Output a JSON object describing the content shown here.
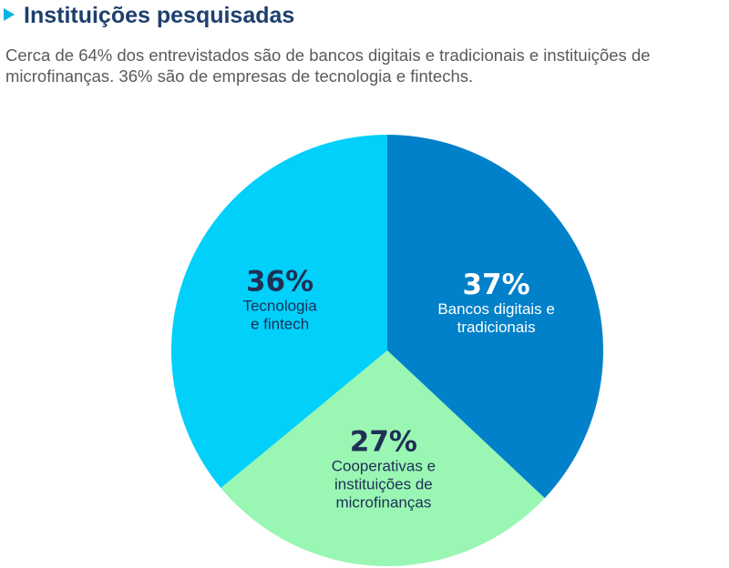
{
  "header": {
    "title": "Instituições pesquisadas",
    "subtitle": "Cerca de 64% dos entrevistados são de bancos digitais e tradicionais e instituições de microfinanças. 36% são de empresas de tecnologia e fintechs."
  },
  "chart_data": {
    "type": "pie",
    "title": "Instituições pesquisadas",
    "slices": [
      {
        "value": 37,
        "value_label": "37%",
        "label_lines": [
          "Bancos digitais e",
          "tradicionais"
        ],
        "color": "#0081c9",
        "text_color": "#ffffff"
      },
      {
        "value": 27,
        "value_label": "27%",
        "label_lines": [
          "Cooperativas e",
          "instituições de",
          "microfinanças"
        ],
        "color": "#99f7b3",
        "text_color": "#1f2f55"
      },
      {
        "value": 36,
        "value_label": "36%",
        "label_lines": [
          "Tecnologia",
          "e fintech"
        ],
        "color": "#00d0fa",
        "text_color": "#1f2f55"
      }
    ],
    "start_angle_deg": 0,
    "direction": "clockwise",
    "legend": "none"
  }
}
